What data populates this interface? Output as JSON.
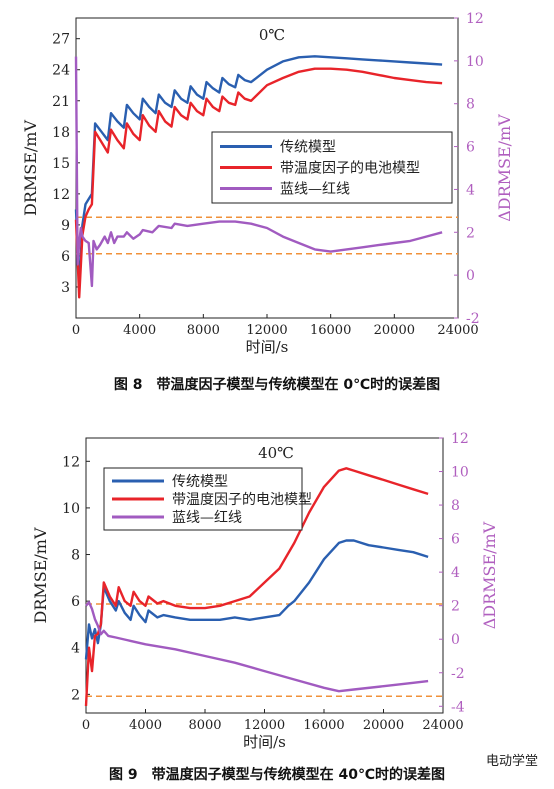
{
  "chart_data": [
    {
      "type": "line",
      "annotation": "0℃",
      "xlabel": "时间/s",
      "ylabel": "DRMSE/mV",
      "y2label": "ΔDRMSE/mV",
      "xlim": [
        0,
        24000
      ],
      "ylim": [
        0,
        29
      ],
      "y2lim": [
        -2,
        12
      ],
      "xticks": [
        0,
        4000,
        8000,
        12000,
        16000,
        20000,
        24000
      ],
      "yticks": [
        3,
        6,
        9,
        12,
        15,
        18,
        21,
        24,
        27
      ],
      "y2ticks": [
        -2,
        0,
        2,
        4,
        6,
        8,
        10,
        12
      ],
      "hlines_y2": [
        2.7,
        1.0
      ],
      "legend_position": "center-right",
      "series": [
        {
          "name": "传统模型",
          "color": "#2a5fb0",
          "axis": "left",
          "x": [
            0,
            200,
            400,
            600,
            800,
            1000,
            1200,
            1600,
            2000,
            2200,
            2600,
            3000,
            3200,
            3600,
            4000,
            4200,
            4600,
            5000,
            5200,
            5600,
            6000,
            6200,
            6600,
            7000,
            7200,
            7600,
            8000,
            8200,
            8600,
            9000,
            9200,
            9600,
            10000,
            10200,
            10600,
            11000,
            12000,
            13000,
            14000,
            15000,
            16000,
            17000,
            18000,
            19000,
            20000,
            21000,
            22000,
            23000
          ],
          "y": [
            10.5,
            3.0,
            9.0,
            11.0,
            11.5,
            12.0,
            18.8,
            18.0,
            17.2,
            19.8,
            19.0,
            18.4,
            20.6,
            19.8,
            19.2,
            21.2,
            20.4,
            19.8,
            21.6,
            20.8,
            20.4,
            22.0,
            21.2,
            20.8,
            22.4,
            21.6,
            21.2,
            22.8,
            22.2,
            21.8,
            23.2,
            22.6,
            22.3,
            23.5,
            23.0,
            22.8,
            24.0,
            24.8,
            25.2,
            25.3,
            25.2,
            25.1,
            25.0,
            24.9,
            24.8,
            24.7,
            24.6,
            24.5
          ]
        },
        {
          "name": "带温度因子的电池模型",
          "color": "#e8242a",
          "axis": "left",
          "x": [
            0,
            200,
            400,
            600,
            800,
            1000,
            1200,
            1600,
            2000,
            2200,
            2600,
            3000,
            3200,
            3600,
            4000,
            4200,
            4600,
            5000,
            5200,
            5600,
            6000,
            6200,
            6600,
            7000,
            7200,
            7600,
            8000,
            8200,
            8600,
            9000,
            9200,
            9600,
            10000,
            10200,
            10600,
            11000,
            12000,
            13000,
            14000,
            15000,
            16000,
            17000,
            18000,
            19000,
            20000,
            21000,
            22000,
            23000
          ],
          "y": [
            9.5,
            2.0,
            8.0,
            9.8,
            10.5,
            11.0,
            18.0,
            17.0,
            16.0,
            18.2,
            17.2,
            16.4,
            18.8,
            17.8,
            17.2,
            19.6,
            18.6,
            18.0,
            20.0,
            19.0,
            18.5,
            20.4,
            19.6,
            19.2,
            20.8,
            20.0,
            19.6,
            21.2,
            20.4,
            20.0,
            21.4,
            20.8,
            20.6,
            21.8,
            21.2,
            21.0,
            22.5,
            23.2,
            23.8,
            24.1,
            24.1,
            24.0,
            23.8,
            23.5,
            23.2,
            23.0,
            22.8,
            22.7
          ]
        },
        {
          "name": "蓝线—红线",
          "color": "#a15bc0",
          "axis": "right",
          "x": [
            0,
            100,
            200,
            300,
            400,
            600,
            800,
            1000,
            1100,
            1300,
            1500,
            1800,
            2000,
            2200,
            2400,
            2600,
            3000,
            3200,
            3600,
            4000,
            4200,
            4800,
            5200,
            6000,
            6200,
            7000,
            8000,
            9000,
            10000,
            11000,
            12000,
            13000,
            14000,
            15000,
            16000,
            17000,
            18000,
            19000,
            20000,
            21000,
            22000,
            23000
          ],
          "y": [
            10.2,
            0.5,
            1.5,
            2.2,
            1.8,
            1.6,
            1.5,
            -0.5,
            1.6,
            1.2,
            1.4,
            1.8,
            1.5,
            2.0,
            1.5,
            1.8,
            1.8,
            2.0,
            1.7,
            1.9,
            2.1,
            2.0,
            2.3,
            2.2,
            2.4,
            2.3,
            2.4,
            2.5,
            2.5,
            2.4,
            2.2,
            1.8,
            1.5,
            1.2,
            1.1,
            1.2,
            1.3,
            1.4,
            1.5,
            1.6,
            1.8,
            2.0
          ]
        }
      ]
    },
    {
      "type": "line",
      "annotation": "40℃",
      "xlabel": "时间/s",
      "ylabel": "DRMSE/mV",
      "y2label": "ΔDRMSE/mV",
      "xlim": [
        0,
        24000
      ],
      "ylim": [
        1.2,
        13.0
      ],
      "y2lim": [
        -4.4,
        12.0
      ],
      "xticks": [
        0,
        4000,
        8000,
        12000,
        16000,
        20000,
        24000
      ],
      "yticks": [
        2,
        4,
        6,
        8,
        10,
        12
      ],
      "y2ticks": [
        -4,
        -2,
        0,
        2,
        4,
        6,
        8,
        10,
        12
      ],
      "hlines_y2": [
        2.1,
        -3.4
      ],
      "legend_position": "top-left",
      "series": [
        {
          "name": "传统模型",
          "color": "#2a5fb0",
          "axis": "left",
          "x": [
            0,
            200,
            400,
            600,
            800,
            1000,
            1200,
            1600,
            2000,
            2200,
            2600,
            3000,
            3200,
            3600,
            4000,
            4200,
            4800,
            5200,
            6000,
            7000,
            8000,
            9000,
            10000,
            11000,
            12000,
            13000,
            13600,
            14000,
            15000,
            16000,
            17000,
            17500,
            18000,
            19000,
            20000,
            21000,
            22000,
            23000
          ],
          "y": [
            3.5,
            5.0,
            4.4,
            4.8,
            4.2,
            5.0,
            6.6,
            6.0,
            5.6,
            6.0,
            5.5,
            5.2,
            5.8,
            5.4,
            5.1,
            5.6,
            5.3,
            5.4,
            5.3,
            5.2,
            5.2,
            5.2,
            5.3,
            5.2,
            5.3,
            5.4,
            5.8,
            6.0,
            6.8,
            7.8,
            8.5,
            8.6,
            8.6,
            8.4,
            8.3,
            8.2,
            8.1,
            7.9
          ]
        },
        {
          "name": "带温度因子的电池模型",
          "color": "#e8242a",
          "axis": "left",
          "x": [
            0,
            200,
            400,
            600,
            800,
            1000,
            1200,
            1600,
            2000,
            2200,
            2600,
            3000,
            3200,
            3600,
            4000,
            4200,
            4800,
            5200,
            6000,
            7000,
            8000,
            9000,
            10000,
            11000,
            12000,
            13000,
            14000,
            15000,
            16000,
            17000,
            17500,
            18000,
            19000,
            20000,
            21000,
            22000,
            23000
          ],
          "y": [
            1.5,
            4.0,
            3.0,
            4.5,
            4.6,
            5.0,
            6.8,
            6.2,
            5.8,
            6.6,
            6.0,
            5.8,
            6.4,
            6.0,
            5.8,
            6.2,
            5.9,
            6.0,
            5.8,
            5.7,
            5.7,
            5.8,
            6.0,
            6.2,
            6.8,
            7.4,
            8.5,
            9.8,
            10.9,
            11.6,
            11.7,
            11.6,
            11.4,
            11.2,
            11.0,
            10.8,
            10.6
          ]
        },
        {
          "name": "蓝线—红线",
          "color": "#a15bc0",
          "axis": "right",
          "x": [
            0,
            200,
            400,
            600,
            800,
            1000,
            1200,
            1500,
            2000,
            3000,
            4000,
            6000,
            8000,
            10000,
            12000,
            14000,
            16000,
            17000,
            18000,
            20000,
            22000,
            23000
          ],
          "y": [
            2.0,
            2.2,
            1.8,
            1.2,
            0.8,
            0.3,
            0.5,
            0.2,
            0.1,
            -0.1,
            -0.3,
            -0.6,
            -1.0,
            -1.4,
            -1.9,
            -2.4,
            -2.9,
            -3.1,
            -3.0,
            -2.8,
            -2.6,
            -2.5
          ]
        }
      ]
    }
  ],
  "captions": {
    "fig8": "图 8　带温度因子模型与传统模型在 0℃时的误差图",
    "fig9": "图 9　带温度因子模型与传统模型在 40℃时的误差图"
  },
  "watermark": "电动学堂",
  "colors": {
    "blue": "#2a5fb0",
    "red": "#e8242a",
    "purple": "#a15bc0",
    "orange_dash": "#f0913a",
    "right_axis": "#b05fbf"
  }
}
